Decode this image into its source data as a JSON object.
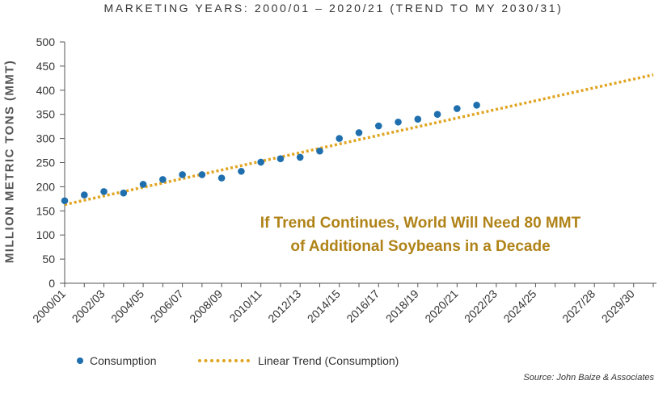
{
  "subtitle": "MARKETING YEARS: 2000/01 – 2020/21 (TREND TO MY 2030/31)",
  "annotation": {
    "line1": "If Trend Continues, World Will Need 80 MMT",
    "line2": "of Additional Soybeans in a Decade"
  },
  "source": "Source: John Baize & Associates",
  "colors": {
    "consumption": "#1f6fae",
    "trend": "#e0a420",
    "annotation": "#b08318",
    "axis": "#555555"
  },
  "chart_data": {
    "type": "scatter",
    "ylabel": "MILLION METRIC TONS (MMT)",
    "xlabel": "",
    "ylim": [
      0,
      500
    ],
    "yticks": [
      0,
      50,
      100,
      150,
      200,
      250,
      300,
      350,
      400,
      450,
      500
    ],
    "grid": false,
    "legend_position": "bottom-left",
    "xtick_labels": [
      "2000/01",
      "2002/03",
      "2004/05",
      "2006/07",
      "2008/09",
      "2010/11",
      "2012/13",
      "2014/15",
      "2016/17",
      "2018/19",
      "2020/21",
      "2022/23",
      "2024/25",
      "2027/28",
      "2029/30"
    ],
    "series": [
      {
        "name": "Consumption",
        "type": "scatter",
        "x": [
          "2000/01",
          "2001/02",
          "2002/03",
          "2003/04",
          "2004/05",
          "2005/06",
          "2006/07",
          "2007/08",
          "2008/09",
          "2009/10",
          "2010/11",
          "2011/12",
          "2012/13",
          "2013/14",
          "2014/15",
          "2015/16",
          "2016/17",
          "2017/18",
          "2018/19",
          "2019/20",
          "2020/21",
          "2021/22"
        ],
        "values": [
          171,
          183,
          190,
          187,
          205,
          215,
          225,
          225,
          218,
          232,
          251,
          258,
          261,
          274,
          300,
          312,
          326,
          334,
          340,
          350,
          362,
          369
        ]
      },
      {
        "name": "Linear Trend (Consumption)",
        "type": "line",
        "x": [
          "2000/01",
          "2030/31"
        ],
        "values": [
          163,
          432
        ]
      }
    ]
  }
}
